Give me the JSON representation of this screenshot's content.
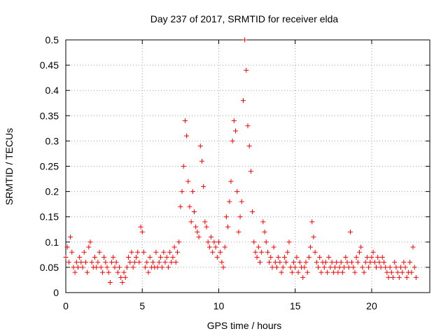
{
  "chart_data": {
    "type": "scatter",
    "title": "Day 237 of 2017, SRMTID for receiver elda",
    "xlabel": "GPS time / hours",
    "ylabel": "SRMTID / TECUs",
    "xlim": [
      0,
      23.8
    ],
    "ylim": [
      0,
      0.5
    ],
    "xticks": [
      0,
      5,
      10,
      15,
      20
    ],
    "xtick_labels": [
      "0",
      "5",
      "10",
      "15",
      "20"
    ],
    "yticks": [
      0,
      0.05,
      0.1,
      0.15,
      0.2,
      0.25,
      0.3,
      0.35,
      0.4,
      0.45,
      0.5
    ],
    "ytick_labels": [
      "0",
      "0.05",
      "0.1",
      "0.15",
      "0.2",
      "0.25",
      "0.3",
      "0.35",
      "0.4",
      "0.45",
      "0.5"
    ],
    "grid": true,
    "marker": "+",
    "color": "#ff0000",
    "series": [
      {
        "name": "SRMTID",
        "points": [
          [
            0.0,
            0.07
          ],
          [
            0.1,
            0.09
          ],
          [
            0.2,
            0.06
          ],
          [
            0.3,
            0.11
          ],
          [
            0.4,
            0.08
          ],
          [
            0.5,
            0.05
          ],
          [
            0.6,
            0.04
          ],
          [
            0.7,
            0.06
          ],
          [
            0.8,
            0.05
          ],
          [
            0.9,
            0.07
          ],
          [
            1.0,
            0.06
          ],
          [
            1.1,
            0.05
          ],
          [
            1.2,
            0.08
          ],
          [
            1.3,
            0.06
          ],
          [
            1.4,
            0.04
          ],
          [
            1.5,
            0.09
          ],
          [
            1.6,
            0.1
          ],
          [
            1.7,
            0.06
          ],
          [
            1.8,
            0.05
          ],
          [
            1.9,
            0.07
          ],
          [
            2.0,
            0.05
          ],
          [
            2.1,
            0.06
          ],
          [
            2.2,
            0.08
          ],
          [
            2.3,
            0.05
          ],
          [
            2.4,
            0.04
          ],
          [
            2.5,
            0.07
          ],
          [
            2.6,
            0.06
          ],
          [
            2.7,
            0.05
          ],
          [
            2.8,
            0.04
          ],
          [
            2.9,
            0.02
          ],
          [
            3.0,
            0.06
          ],
          [
            3.1,
            0.07
          ],
          [
            3.2,
            0.05
          ],
          [
            3.3,
            0.06
          ],
          [
            3.4,
            0.04
          ],
          [
            3.5,
            0.05
          ],
          [
            3.6,
            0.03
          ],
          [
            3.7,
            0.02
          ],
          [
            3.8,
            0.04
          ],
          [
            3.9,
            0.03
          ],
          [
            4.0,
            0.05
          ],
          [
            4.1,
            0.07
          ],
          [
            4.2,
            0.06
          ],
          [
            4.3,
            0.08
          ],
          [
            4.4,
            0.05
          ],
          [
            4.5,
            0.06
          ],
          [
            4.6,
            0.07
          ],
          [
            4.7,
            0.08
          ],
          [
            4.8,
            0.06
          ],
          [
            4.9,
            0.13
          ],
          [
            5.0,
            0.12
          ],
          [
            5.1,
            0.08
          ],
          [
            5.2,
            0.05
          ],
          [
            5.3,
            0.06
          ],
          [
            5.4,
            0.04
          ],
          [
            5.5,
            0.07
          ],
          [
            5.6,
            0.05
          ],
          [
            5.7,
            0.06
          ],
          [
            5.8,
            0.05
          ],
          [
            5.9,
            0.08
          ],
          [
            6.0,
            0.05
          ],
          [
            6.1,
            0.06
          ],
          [
            6.2,
            0.07
          ],
          [
            6.3,
            0.05
          ],
          [
            6.4,
            0.08
          ],
          [
            6.5,
            0.06
          ],
          [
            6.6,
            0.07
          ],
          [
            6.7,
            0.05
          ],
          [
            6.8,
            0.08
          ],
          [
            6.9,
            0.06
          ],
          [
            7.0,
            0.07
          ],
          [
            7.1,
            0.09
          ],
          [
            7.2,
            0.06
          ],
          [
            7.3,
            0.08
          ],
          [
            7.4,
            0.1
          ],
          [
            7.5,
            0.17
          ],
          [
            7.6,
            0.2
          ],
          [
            7.7,
            0.25
          ],
          [
            7.8,
            0.34
          ],
          [
            7.9,
            0.31
          ],
          [
            8.0,
            0.22
          ],
          [
            8.1,
            0.17
          ],
          [
            8.2,
            0.14
          ],
          [
            8.3,
            0.2
          ],
          [
            8.4,
            0.16
          ],
          [
            8.5,
            0.13
          ],
          [
            8.6,
            0.12
          ],
          [
            8.7,
            0.11
          ],
          [
            8.8,
            0.29
          ],
          [
            8.9,
            0.26
          ],
          [
            9.0,
            0.21
          ],
          [
            9.1,
            0.14
          ],
          [
            9.2,
            0.13
          ],
          [
            9.3,
            0.1
          ],
          [
            9.4,
            0.09
          ],
          [
            9.5,
            0.11
          ],
          [
            9.6,
            0.08
          ],
          [
            9.7,
            0.1
          ],
          [
            9.8,
            0.09
          ],
          [
            9.9,
            0.07
          ],
          [
            10.0,
            0.1
          ],
          [
            10.1,
            0.08
          ],
          [
            10.2,
            0.06
          ],
          [
            10.3,
            0.05
          ],
          [
            10.4,
            0.09
          ],
          [
            10.5,
            0.15
          ],
          [
            10.6,
            0.13
          ],
          [
            10.7,
            0.18
          ],
          [
            10.8,
            0.22
          ],
          [
            10.9,
            0.3
          ],
          [
            11.0,
            0.34
          ],
          [
            11.1,
            0.32
          ],
          [
            11.2,
            0.2
          ],
          [
            11.3,
            0.12
          ],
          [
            11.4,
            0.15
          ],
          [
            11.5,
            0.18
          ],
          [
            11.6,
            0.38
          ],
          [
            11.7,
            0.5
          ],
          [
            11.8,
            0.44
          ],
          [
            11.9,
            0.33
          ],
          [
            12.0,
            0.29
          ],
          [
            12.1,
            0.24
          ],
          [
            12.2,
            0.16
          ],
          [
            12.3,
            0.1
          ],
          [
            12.4,
            0.08
          ],
          [
            12.5,
            0.07
          ],
          [
            12.6,
            0.09
          ],
          [
            12.7,
            0.06
          ],
          [
            12.8,
            0.08
          ],
          [
            12.9,
            0.14
          ],
          [
            13.0,
            0.12
          ],
          [
            13.1,
            0.1
          ],
          [
            13.2,
            0.08
          ],
          [
            13.3,
            0.06
          ],
          [
            13.4,
            0.07
          ],
          [
            13.5,
            0.05
          ],
          [
            13.6,
            0.09
          ],
          [
            13.7,
            0.06
          ],
          [
            13.8,
            0.05
          ],
          [
            13.9,
            0.07
          ],
          [
            14.0,
            0.06
          ],
          [
            14.1,
            0.04
          ],
          [
            14.2,
            0.05
          ],
          [
            14.3,
            0.07
          ],
          [
            14.4,
            0.06
          ],
          [
            14.5,
            0.08
          ],
          [
            14.6,
            0.1
          ],
          [
            14.7,
            0.05
          ],
          [
            14.8,
            0.04
          ],
          [
            14.9,
            0.06
          ],
          [
            15.0,
            0.05
          ],
          [
            15.1,
            0.07
          ],
          [
            15.2,
            0.04
          ],
          [
            15.3,
            0.06
          ],
          [
            15.4,
            0.05
          ],
          [
            15.5,
            0.03
          ],
          [
            15.6,
            0.05
          ],
          [
            15.7,
            0.06
          ],
          [
            15.8,
            0.04
          ],
          [
            15.9,
            0.07
          ],
          [
            16.0,
            0.09
          ],
          [
            16.1,
            0.14
          ],
          [
            16.2,
            0.11
          ],
          [
            16.3,
            0.08
          ],
          [
            16.4,
            0.06
          ],
          [
            16.5,
            0.05
          ],
          [
            16.6,
            0.07
          ],
          [
            16.7,
            0.04
          ],
          [
            16.8,
            0.06
          ],
          [
            16.9,
            0.05
          ],
          [
            17.0,
            0.06
          ],
          [
            17.1,
            0.04
          ],
          [
            17.2,
            0.07
          ],
          [
            17.3,
            0.05
          ],
          [
            17.4,
            0.06
          ],
          [
            17.5,
            0.04
          ],
          [
            17.6,
            0.05
          ],
          [
            17.7,
            0.06
          ],
          [
            17.8,
            0.04
          ],
          [
            17.9,
            0.05
          ],
          [
            18.0,
            0.06
          ],
          [
            18.1,
            0.04
          ],
          [
            18.2,
            0.05
          ],
          [
            18.3,
            0.07
          ],
          [
            18.4,
            0.06
          ],
          [
            18.5,
            0.05
          ],
          [
            18.6,
            0.12
          ],
          [
            18.7,
            0.06
          ],
          [
            18.8,
            0.05
          ],
          [
            18.9,
            0.04
          ],
          [
            19.0,
            0.07
          ],
          [
            19.1,
            0.06
          ],
          [
            19.2,
            0.08
          ],
          [
            19.3,
            0.09
          ],
          [
            19.4,
            0.05
          ],
          [
            19.5,
            0.04
          ],
          [
            19.6,
            0.06
          ],
          [
            19.7,
            0.07
          ],
          [
            19.8,
            0.05
          ],
          [
            19.9,
            0.06
          ],
          [
            20.0,
            0.07
          ],
          [
            20.1,
            0.08
          ],
          [
            20.2,
            0.06
          ],
          [
            20.3,
            0.05
          ],
          [
            20.4,
            0.07
          ],
          [
            20.5,
            0.06
          ],
          [
            20.6,
            0.05
          ],
          [
            20.7,
            0.07
          ],
          [
            20.8,
            0.06
          ],
          [
            20.9,
            0.05
          ],
          [
            21.0,
            0.04
          ],
          [
            21.1,
            0.03
          ],
          [
            21.2,
            0.05
          ],
          [
            21.3,
            0.04
          ],
          [
            21.4,
            0.03
          ],
          [
            21.5,
            0.06
          ],
          [
            21.6,
            0.05
          ],
          [
            21.7,
            0.04
          ],
          [
            21.8,
            0.03
          ],
          [
            21.9,
            0.05
          ],
          [
            22.0,
            0.04
          ],
          [
            22.1,
            0.06
          ],
          [
            22.2,
            0.05
          ],
          [
            22.3,
            0.03
          ],
          [
            22.4,
            0.04
          ],
          [
            22.5,
            0.06
          ],
          [
            22.6,
            0.04
          ],
          [
            22.7,
            0.09
          ],
          [
            22.8,
            0.05
          ],
          [
            22.9,
            0.03
          ]
        ]
      }
    ]
  }
}
